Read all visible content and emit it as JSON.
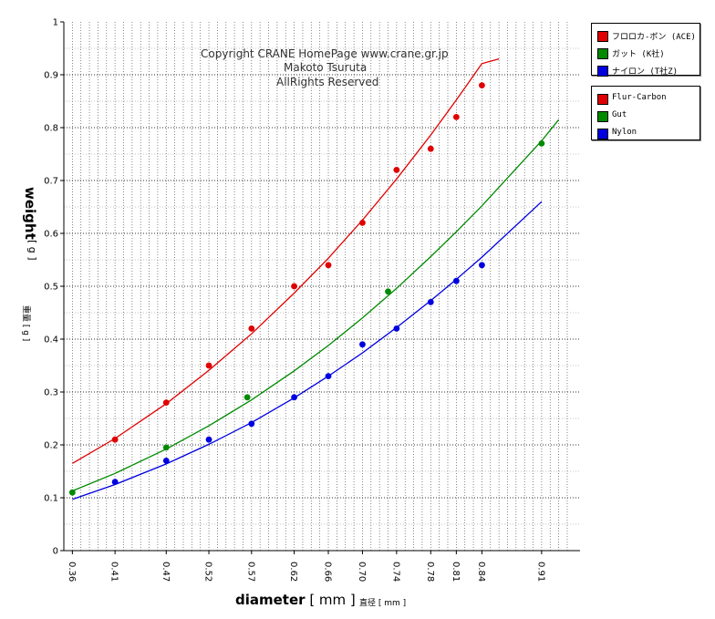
{
  "copyright": {
    "line1": "Copyright CRANE HomePage     www.crane.gr.jp",
    "line2": "Makoto Tsuruta",
    "line3": "AllRights Reserved"
  },
  "legend_jp": [
    {
      "label": "フロロカ-ボン (ACE)",
      "color": "#e00000"
    },
    {
      "label": "ガット (K社)",
      "color": "#008a00"
    },
    {
      "label": "ナイロン (T社Z)",
      "color": "#0000e0"
    }
  ],
  "legend_en": [
    {
      "label": "Flur-Carbon",
      "color": "#e00000"
    },
    {
      "label": "Gut",
      "color": "#008a00"
    },
    {
      "label": "Nylon",
      "color": "#0000e0"
    }
  ],
  "axis_labels": {
    "y_main": "weight",
    "y_unit": "[ g ]",
    "y_jp": "重量 [ g ]",
    "x_main": "diameter",
    "x_unit": " [ mm ]",
    "x_jp": "直径 [ mm ]"
  },
  "chart_data": {
    "type": "scatter",
    "xlabel": "diameter [mm]",
    "ylabel": "weight [ g ]",
    "ylim": [
      0,
      1
    ],
    "y_ticks": [
      "0",
      "0.1",
      "0.2",
      "0.3",
      "0.4",
      "0.5",
      "0.6",
      "0.7",
      "0.8",
      "0.9",
      "1"
    ],
    "x_ticks": [
      "0.36",
      "0.41",
      "0.47",
      "0.52",
      "0.57",
      "0.62",
      "0.66",
      "0.70",
      "0.74",
      "0.78",
      "0.81",
      "0.84",
      "0.91"
    ],
    "grid": true,
    "legend_position": "right",
    "series": [
      {
        "name": "Flur-Carbon",
        "color": "#e00000",
        "points": [
          [
            0.41,
            0.21
          ],
          [
            0.47,
            0.28
          ],
          [
            0.52,
            0.35
          ],
          [
            0.57,
            0.42
          ],
          [
            0.62,
            0.5
          ],
          [
            0.66,
            0.54
          ],
          [
            0.7,
            0.62
          ],
          [
            0.74,
            0.72
          ],
          [
            0.78,
            0.76
          ],
          [
            0.81,
            0.82
          ],
          [
            0.84,
            0.88
          ]
        ],
        "fit": [
          [
            0.36,
            0.165
          ],
          [
            0.41,
            0.212
          ],
          [
            0.47,
            0.278
          ],
          [
            0.52,
            0.341
          ],
          [
            0.57,
            0.41
          ],
          [
            0.62,
            0.487
          ],
          [
            0.66,
            0.553
          ],
          [
            0.7,
            0.625
          ],
          [
            0.74,
            0.703
          ],
          [
            0.78,
            0.786
          ],
          [
            0.81,
            0.852
          ],
          [
            0.84,
            0.921
          ],
          [
            0.86,
            0.93
          ]
        ]
      },
      {
        "name": "Gut",
        "color": "#008a00",
        "points": [
          [
            0.36,
            0.11
          ],
          [
            0.47,
            0.195
          ],
          [
            0.565,
            0.29
          ],
          [
            0.73,
            0.49
          ],
          [
            0.91,
            0.77
          ]
        ],
        "fit": [
          [
            0.36,
            0.113
          ],
          [
            0.41,
            0.146
          ],
          [
            0.47,
            0.192
          ],
          [
            0.52,
            0.236
          ],
          [
            0.57,
            0.285
          ],
          [
            0.62,
            0.34
          ],
          [
            0.66,
            0.388
          ],
          [
            0.7,
            0.44
          ],
          [
            0.74,
            0.496
          ],
          [
            0.78,
            0.556
          ],
          [
            0.81,
            0.603
          ],
          [
            0.84,
            0.652
          ],
          [
            0.91,
            0.775
          ],
          [
            0.93,
            0.815
          ]
        ]
      },
      {
        "name": "Nylon",
        "color": "#0000e0",
        "points": [
          [
            0.41,
            0.13
          ],
          [
            0.47,
            0.17
          ],
          [
            0.52,
            0.21
          ],
          [
            0.57,
            0.24
          ],
          [
            0.62,
            0.29
          ],
          [
            0.66,
            0.33
          ],
          [
            0.7,
            0.39
          ],
          [
            0.74,
            0.42
          ],
          [
            0.78,
            0.47
          ],
          [
            0.81,
            0.51
          ],
          [
            0.84,
            0.54
          ]
        ],
        "fit": [
          [
            0.36,
            0.097
          ],
          [
            0.41,
            0.125
          ],
          [
            0.47,
            0.164
          ],
          [
            0.52,
            0.201
          ],
          [
            0.57,
            0.242
          ],
          [
            0.62,
            0.289
          ],
          [
            0.66,
            0.33
          ],
          [
            0.7,
            0.374
          ],
          [
            0.74,
            0.422
          ],
          [
            0.78,
            0.473
          ],
          [
            0.81,
            0.513
          ],
          [
            0.84,
            0.555
          ],
          [
            0.91,
            0.66
          ]
        ]
      }
    ]
  }
}
